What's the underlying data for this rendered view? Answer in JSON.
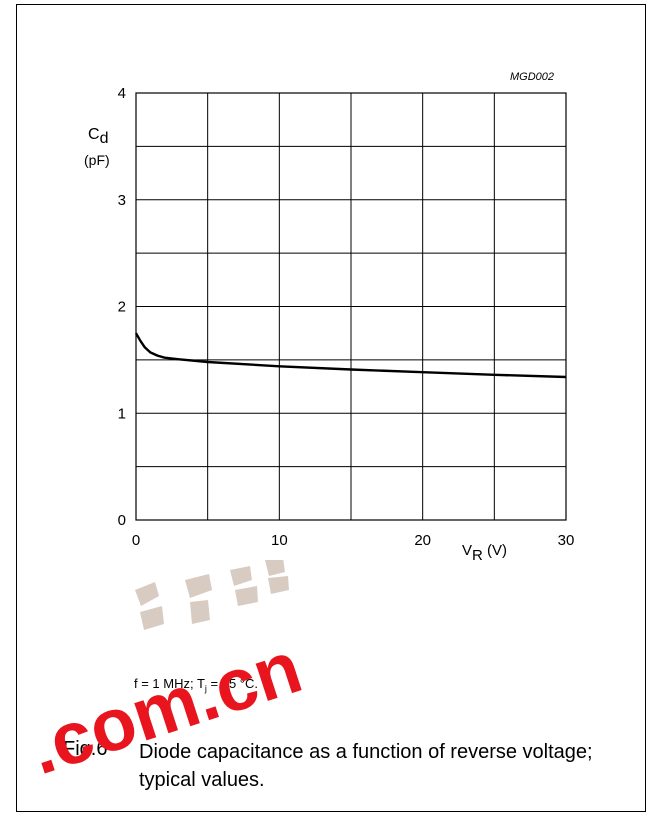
{
  "figure": {
    "ref_code": "MGD002",
    "ylabel_symbol": "C",
    "ylabel_sub": "d",
    "ylabel_unit": "(pF)",
    "xlabel_symbol": "V",
    "xlabel_sub": "R",
    "xlabel_unit": "(V)",
    "conditions": {
      "part1": "f = 1 MHz; T",
      "sub": "j",
      "part2": " = 25 °C."
    },
    "fig_number": "Fig.6",
    "caption": "Diode capacitance as a function of reverse voltage; typical values."
  },
  "watermark": {
    "text": ".com.cn",
    "color": "#e8141e"
  },
  "chart_data": {
    "type": "line",
    "title": "",
    "xlabel": "VR (V)",
    "ylabel": "Cd (pF)",
    "xlim": [
      0,
      30
    ],
    "ylim": [
      0,
      4
    ],
    "x_ticks": [
      0,
      10,
      20,
      30
    ],
    "y_ticks": [
      0,
      1,
      2,
      3,
      4
    ],
    "grid": true,
    "grid_x_step": 5,
    "grid_y_step": 0.5,
    "series": [
      {
        "x": [
          0,
          0.3,
          0.6,
          1.0,
          1.5,
          2.0,
          3.0,
          5.0,
          10.0,
          15.0,
          20.0,
          25.0,
          30.0
        ],
        "y": [
          1.75,
          1.68,
          1.62,
          1.57,
          1.54,
          1.52,
          1.505,
          1.48,
          1.44,
          1.41,
          1.385,
          1.36,
          1.34
        ]
      }
    ]
  }
}
